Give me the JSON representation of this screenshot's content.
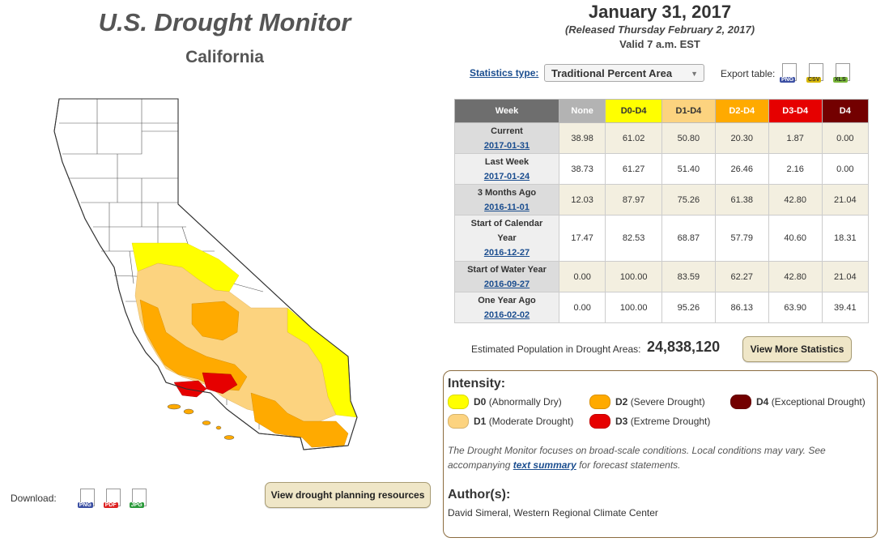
{
  "header": {
    "title": "U.S. Drought Monitor",
    "state": "California",
    "date": "January 31, 2017",
    "released": "(Released Thursday February 2, 2017)",
    "valid": "Valid 7 a.m. EST"
  },
  "controls": {
    "stat_type_label": "Statistics type:",
    "stat_type_value": "Traditional Percent Area",
    "export_label": "Export table:",
    "export_formats": [
      "PNG",
      "CSV",
      "XLS"
    ],
    "download_label": "Download:",
    "download_formats": [
      "PNG",
      "PDF",
      "JPG"
    ],
    "planning_button": "View drought planning resources",
    "more_stats_button": "View More Statistics"
  },
  "table": {
    "headers": [
      "Week",
      "None",
      "D0-D4",
      "D1-D4",
      "D2-D4",
      "D3-D4",
      "D4"
    ],
    "header_colors": [
      "#6e6e6e",
      "#b3b3b3",
      "#ffff00",
      "#fcd37f",
      "#ffaa00",
      "#e60000",
      "#730000"
    ],
    "rows": [
      {
        "label": "Current",
        "date": "2017-01-31",
        "values": [
          "38.98",
          "61.02",
          "50.80",
          "20.30",
          "1.87",
          "0.00"
        ]
      },
      {
        "label": "Last Week",
        "date": "2017-01-24",
        "values": [
          "38.73",
          "61.27",
          "51.40",
          "26.46",
          "2.16",
          "0.00"
        ]
      },
      {
        "label": "3 Months Ago",
        "date": "2016-11-01",
        "values": [
          "12.03",
          "87.97",
          "75.26",
          "61.38",
          "42.80",
          "21.04"
        ]
      },
      {
        "label": "Start of Calendar Year",
        "date": "2016-12-27",
        "values": [
          "17.47",
          "82.53",
          "68.87",
          "57.79",
          "40.60",
          "18.31"
        ]
      },
      {
        "label": "Start of Water Year",
        "date": "2016-09-27",
        "values": [
          "0.00",
          "100.00",
          "83.59",
          "62.27",
          "42.80",
          "21.04"
        ]
      },
      {
        "label": "One Year Ago",
        "date": "2016-02-02",
        "values": [
          "0.00",
          "100.00",
          "95.26",
          "86.13",
          "63.90",
          "39.41"
        ]
      }
    ]
  },
  "population": {
    "label": "Estimated Population in Drought Areas:",
    "value": "24,838,120"
  },
  "legend": {
    "title": "Intensity:",
    "items": [
      {
        "code": "D0",
        "desc": "(Abnormally Dry)",
        "color": "#ffff00"
      },
      {
        "code": "D1",
        "desc": "(Moderate Drought)",
        "color": "#fcd37f"
      },
      {
        "code": "D2",
        "desc": "(Severe Drought)",
        "color": "#ffaa00"
      },
      {
        "code": "D3",
        "desc": "(Extreme Drought)",
        "color": "#e60000"
      },
      {
        "code": "D4",
        "desc": "(Exceptional Drought)",
        "color": "#730000"
      }
    ]
  },
  "note": {
    "before": "The Drought Monitor focuses on broad-scale conditions. Local conditions may vary. See accompanying ",
    "link": "text summary",
    "after": " for forecast statements."
  },
  "authors": {
    "heading": "Author(s):",
    "name": "David Simeral, Western Regional Climate Center"
  }
}
